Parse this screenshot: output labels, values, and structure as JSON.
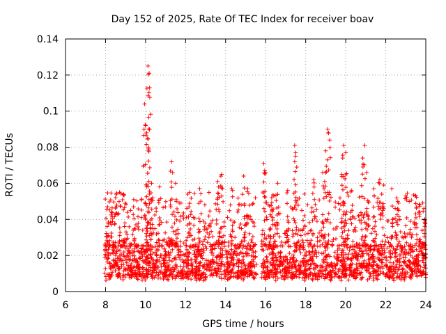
{
  "chart_data": {
    "type": "scatter",
    "title": "Day 152 of 2025, Rate Of TEC Index for receiver boav",
    "xlabel": "GPS time / hours",
    "ylabel": "ROTI / TECUs",
    "xlim": [
      6,
      24
    ],
    "ylim": [
      0,
      0.14
    ],
    "xticks": [
      6,
      8,
      10,
      12,
      14,
      16,
      18,
      20,
      22,
      24
    ],
    "yticks": [
      0,
      0.02,
      0.04,
      0.06,
      0.08,
      0.1,
      0.12,
      0.14
    ],
    "xtick_labels": [
      "6",
      "8",
      "10",
      "12",
      "14",
      "16",
      "18",
      "20",
      "22",
      "24"
    ],
    "ytick_labels": [
      "0",
      "0.02",
      "0.04",
      "0.06",
      "0.08",
      "0.1",
      "0.12",
      "0.14"
    ],
    "grid": true,
    "marker": "+",
    "marker_color": "#ff0000",
    "series": [
      {
        "name": "ROTI",
        "x_range": [
          7.95,
          24
        ],
        "gaps": [
          [
            15.55,
            15.8
          ]
        ],
        "typical_band": [
          0.008,
          0.025
        ],
        "points": [
          [
            8.1,
            0.047
          ],
          [
            8.3,
            0.044
          ],
          [
            8.5,
            0.052
          ],
          [
            8.7,
            0.055
          ],
          [
            8.9,
            0.054
          ],
          [
            9.4,
            0.047
          ],
          [
            9.95,
            0.104
          ],
          [
            10.0,
            0.092
          ],
          [
            10.05,
            0.088
          ],
          [
            10.1,
            0.085
          ],
          [
            10.15,
            0.08
          ],
          [
            10.12,
            0.125
          ],
          [
            10.18,
            0.121
          ],
          [
            10.2,
            0.113
          ],
          [
            10.3,
            0.06
          ],
          [
            10.7,
            0.058
          ],
          [
            11.3,
            0.072
          ],
          [
            11.5,
            0.06
          ],
          [
            12.2,
            0.055
          ],
          [
            12.7,
            0.057
          ],
          [
            13.6,
            0.061
          ],
          [
            13.8,
            0.065
          ],
          [
            14.3,
            0.057
          ],
          [
            14.9,
            0.064
          ],
          [
            15.1,
            0.057
          ],
          [
            15.9,
            0.071
          ],
          [
            16.0,
            0.066
          ],
          [
            16.3,
            0.052
          ],
          [
            16.6,
            0.06
          ],
          [
            17.1,
            0.056
          ],
          [
            17.45,
            0.081
          ],
          [
            17.5,
            0.077
          ],
          [
            17.55,
            0.069
          ],
          [
            18.4,
            0.062
          ],
          [
            18.85,
            0.066
          ],
          [
            18.95,
            0.061
          ],
          [
            19.0,
            0.078
          ],
          [
            19.1,
            0.09
          ],
          [
            19.2,
            0.084
          ],
          [
            19.8,
            0.065
          ],
          [
            19.85,
            0.074
          ],
          [
            19.9,
            0.081
          ],
          [
            20.0,
            0.077
          ],
          [
            20.3,
            0.056
          ],
          [
            20.85,
            0.074
          ],
          [
            20.95,
            0.081
          ],
          [
            21.05,
            0.066
          ],
          [
            21.4,
            0.057
          ],
          [
            21.7,
            0.062
          ],
          [
            21.9,
            0.059
          ],
          [
            22.3,
            0.057
          ],
          [
            22.6,
            0.05
          ],
          [
            23.0,
            0.053
          ],
          [
            23.5,
            0.053
          ],
          [
            23.7,
            0.048
          ],
          [
            23.95,
            0.04
          ]
        ]
      }
    ]
  }
}
